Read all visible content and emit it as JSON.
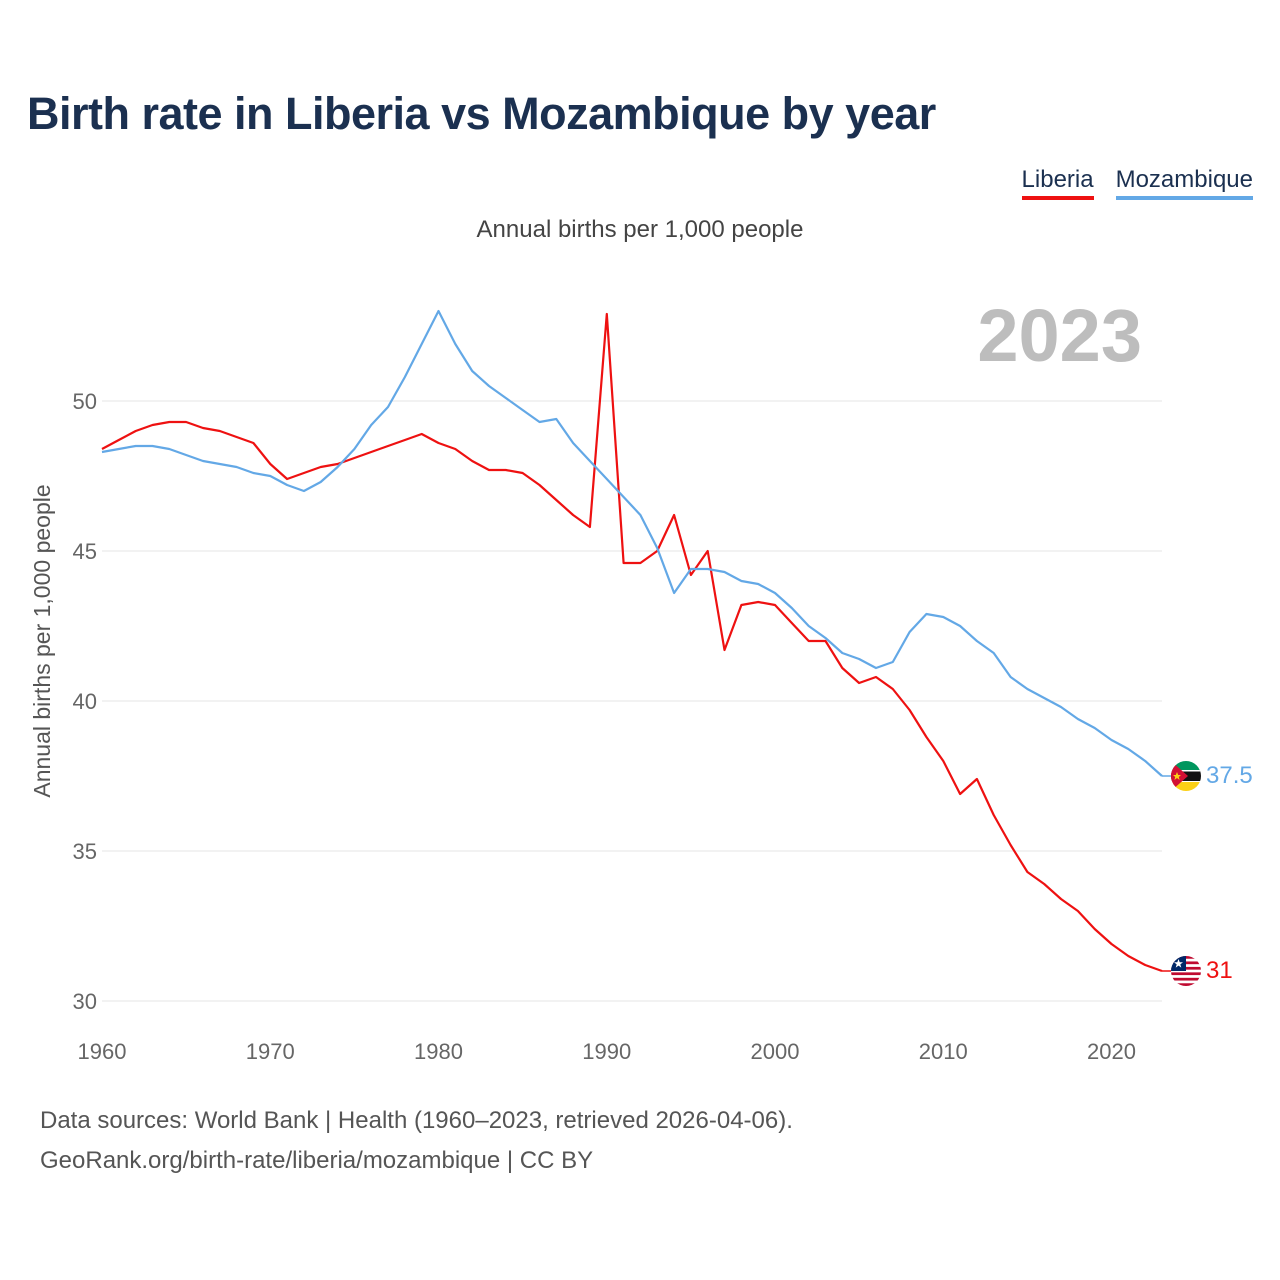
{
  "title": "Birth rate in Liberia vs Mozambique by year",
  "subtitle": "Annual births per 1,000 people",
  "year_label": "2023",
  "footer": {
    "line1": "Data sources: World Bank | Health (1960–2023, retrieved 2026-04-06).",
    "line2": "GeoRank.org/birth-rate/liberia/mozambique | CC BY"
  },
  "colors": {
    "liberia": "#ee1111",
    "mozambique": "#63a8e6"
  },
  "chart_data": {
    "type": "line",
    "title": "Birth rate in Liberia vs Mozambique by year",
    "xlabel": "",
    "ylabel": "Annual births per 1,000 people",
    "xlim": [
      1960,
      2023
    ],
    "ylim": [
      30,
      53.5
    ],
    "x_ticks": [
      1960,
      1970,
      1980,
      1990,
      2000,
      2010,
      2020
    ],
    "y_ticks": [
      30,
      35,
      40,
      45,
      50
    ],
    "grid": true,
    "legend": "top-right",
    "x": [
      1960,
      1961,
      1962,
      1963,
      1964,
      1965,
      1966,
      1967,
      1968,
      1969,
      1970,
      1971,
      1972,
      1973,
      1974,
      1975,
      1976,
      1977,
      1978,
      1979,
      1980,
      1981,
      1982,
      1983,
      1984,
      1985,
      1986,
      1987,
      1988,
      1989,
      1990,
      1991,
      1992,
      1993,
      1994,
      1995,
      1996,
      1997,
      1998,
      1999,
      2000,
      2001,
      2002,
      2003,
      2004,
      2005,
      2006,
      2007,
      2008,
      2009,
      2010,
      2011,
      2012,
      2013,
      2014,
      2015,
      2016,
      2017,
      2018,
      2019,
      2020,
      2021,
      2022,
      2023
    ],
    "series": [
      {
        "name": "Liberia",
        "end_label": "31",
        "values": [
          48.4,
          48.7,
          49.0,
          49.2,
          49.3,
          49.3,
          49.1,
          49.0,
          48.8,
          48.6,
          47.9,
          47.4,
          47.6,
          47.8,
          47.9,
          48.1,
          48.3,
          48.5,
          48.7,
          48.9,
          48.6,
          48.4,
          48.0,
          47.7,
          47.7,
          47.6,
          47.2,
          46.7,
          46.2,
          45.8,
          52.9,
          44.6,
          44.6,
          45.0,
          46.2,
          44.2,
          45.0,
          41.7,
          43.2,
          43.3,
          43.2,
          42.6,
          42.0,
          42.0,
          41.1,
          40.6,
          40.8,
          40.4,
          39.7,
          38.8,
          38.0,
          36.9,
          37.4,
          36.2,
          35.2,
          34.3,
          33.9,
          33.4,
          33.0,
          32.4,
          31.9,
          31.5,
          31.2,
          31.0
        ]
      },
      {
        "name": "Mozambique",
        "end_label": "37.5",
        "values": [
          48.3,
          48.4,
          48.5,
          48.5,
          48.4,
          48.2,
          48.0,
          47.9,
          47.8,
          47.6,
          47.5,
          47.2,
          47.0,
          47.3,
          47.8,
          48.4,
          49.2,
          49.8,
          50.8,
          51.9,
          53.0,
          51.9,
          51.0,
          50.5,
          50.1,
          49.7,
          49.3,
          49.4,
          48.6,
          48.0,
          47.4,
          46.8,
          46.2,
          45.1,
          43.6,
          44.4,
          44.4,
          44.3,
          44.0,
          43.9,
          43.6,
          43.1,
          42.5,
          42.1,
          41.6,
          41.4,
          41.1,
          41.3,
          42.3,
          42.9,
          42.8,
          42.5,
          42.0,
          41.6,
          40.8,
          40.4,
          40.1,
          39.8,
          39.4,
          39.1,
          38.7,
          38.4,
          38.0,
          37.5
        ]
      }
    ]
  }
}
